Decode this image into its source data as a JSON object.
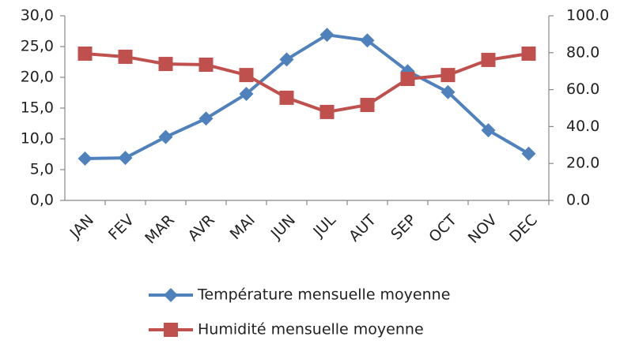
{
  "chart_data": {
    "type": "line",
    "categories": [
      "JAN",
      "FEV",
      "MAR",
      "AVR",
      "MAI",
      "JUN",
      "JUL",
      "AUT",
      "SEP",
      "OCT",
      "NOV",
      "DEC"
    ],
    "series": [
      {
        "name": "Température mensuelle moyenne",
        "color": "#4f81bd",
        "marker": "diamond",
        "values": [
          6.8,
          6.9,
          10.3,
          13.3,
          17.3,
          22.9,
          26.9,
          26.0,
          21.0,
          17.6,
          11.4,
          7.6
        ]
      },
      {
        "name": "Humidité mensuelle moyenne",
        "color": "#c0504d",
        "marker": "square",
        "axis": "y2",
        "values": [
          79.5,
          77.8,
          73.9,
          73.5,
          67.9,
          55.6,
          47.9,
          51.7,
          65.8,
          67.9,
          76.1,
          79.5
        ]
      }
    ],
    "ylim": [
      0,
      30
    ],
    "yticks": [
      {
        "value": 0,
        "label": "0,0"
      },
      {
        "value": 5,
        "label": "5,0"
      },
      {
        "value": 10,
        "label": "10,0"
      },
      {
        "value": 15,
        "label": "15,0"
      },
      {
        "value": 20,
        "label": "20,0"
      },
      {
        "value": 25,
        "label": "25,0"
      },
      {
        "value": 30,
        "label": "30,0"
      }
    ],
    "y2lim": [
      0,
      100
    ],
    "y2ticks": [
      {
        "value": 0,
        "label": "0.0"
      },
      {
        "value": 20,
        "label": "20.0"
      },
      {
        "value": 40,
        "label": "40.0"
      },
      {
        "value": 60,
        "label": "60.0"
      },
      {
        "value": 80,
        "label": "80.0"
      },
      {
        "value": 100,
        "label": "100.0"
      }
    ],
    "grid": false,
    "legend": "bottom"
  }
}
